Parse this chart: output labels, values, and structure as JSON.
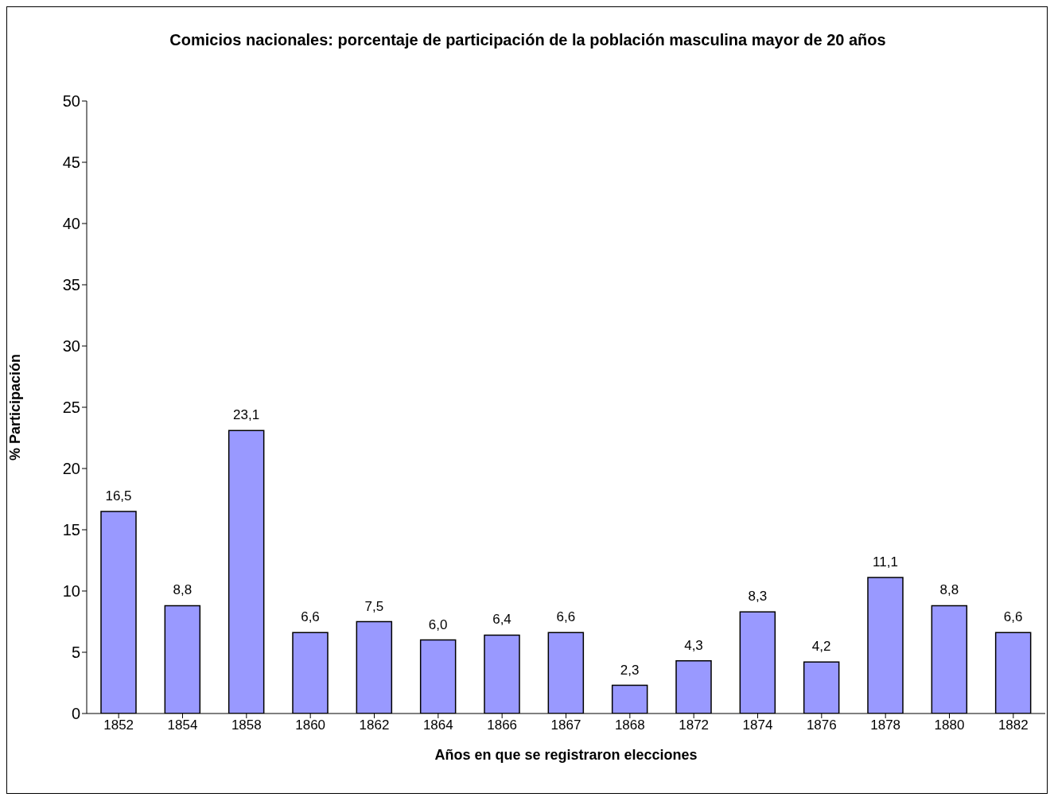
{
  "chart_data": {
    "type": "bar",
    "title": "Comicios nacionales: porcentaje de participación de la población masculina mayor de 20 años",
    "xlabel": "Años en que se registraron elecciones",
    "ylabel": "% Participación",
    "categories": [
      "1852",
      "1854",
      "1858",
      "1860",
      "1862",
      "1864",
      "1866",
      "1867",
      "1868",
      "1872",
      "1874",
      "1876",
      "1878",
      "1880",
      "1882"
    ],
    "values": [
      16.5,
      8.8,
      23.1,
      6.6,
      7.5,
      6.0,
      6.4,
      6.6,
      2.3,
      4.3,
      8.3,
      4.2,
      11.1,
      8.8,
      6.6
    ],
    "value_labels": [
      "16,5",
      "8,8",
      "23,1",
      "6,6",
      "7,5",
      "6,0",
      "6,4",
      "6,6",
      "2,3",
      "4,3",
      "8,3",
      "4,2",
      "11,1",
      "8,8",
      "6,6"
    ],
    "color": "#9999ff",
    "ylim": [
      0,
      50
    ],
    "yticks": [
      0,
      5,
      10,
      15,
      20,
      25,
      30,
      35,
      40,
      45,
      50
    ],
    "grid": false,
    "legend": false
  }
}
